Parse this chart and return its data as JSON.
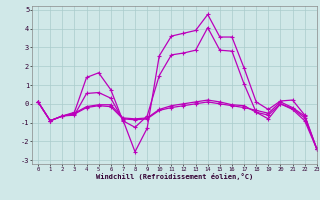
{
  "xlabel": "Windchill (Refroidissement éolien,°C)",
  "xlim": [
    -0.5,
    23
  ],
  "ylim": [
    -3.2,
    5.2
  ],
  "yticks": [
    -3,
    -2,
    -1,
    0,
    1,
    2,
    3,
    4,
    5
  ],
  "xticks": [
    0,
    1,
    2,
    3,
    4,
    5,
    6,
    7,
    8,
    9,
    10,
    11,
    12,
    13,
    14,
    15,
    16,
    17,
    18,
    19,
    20,
    21,
    22,
    23
  ],
  "background_color": "#d0e8e8",
  "grid_color": "#aacccc",
  "line_color": "#bb00bb",
  "line_width": 0.9,
  "marker": "+",
  "marker_size": 3,
  "marker_edge_width": 0.8,
  "curves": [
    [
      0.1,
      -0.9,
      -0.65,
      -0.6,
      0.55,
      0.6,
      0.3,
      -0.85,
      -2.55,
      -1.3,
      2.55,
      3.6,
      3.75,
      3.9,
      4.75,
      3.55,
      3.55,
      1.9,
      0.1,
      -0.3,
      0.15,
      0.2,
      -0.6,
      -2.4
    ],
    [
      0.1,
      -0.9,
      -0.65,
      -0.55,
      -0.2,
      -0.1,
      -0.15,
      -0.8,
      -0.85,
      -0.8,
      -0.35,
      -0.2,
      -0.1,
      0.0,
      0.1,
      0.0,
      -0.1,
      -0.2,
      -0.35,
      -0.5,
      0.1,
      -0.2,
      -0.65,
      -2.4
    ],
    [
      0.1,
      -0.9,
      -0.65,
      -0.5,
      -0.15,
      -0.05,
      -0.05,
      -0.75,
      -0.8,
      -0.75,
      -0.3,
      -0.1,
      0.0,
      0.1,
      0.2,
      0.1,
      -0.05,
      -0.1,
      -0.45,
      -0.6,
      0.0,
      -0.25,
      -0.75,
      -2.4
    ],
    [
      0.1,
      -0.9,
      -0.65,
      -0.45,
      1.4,
      1.65,
      0.75,
      -0.9,
      -1.25,
      -0.65,
      1.5,
      2.6,
      2.7,
      2.85,
      4.05,
      2.85,
      2.8,
      1.05,
      -0.45,
      -0.8,
      0.0,
      -0.3,
      -0.9,
      -2.4
    ]
  ]
}
